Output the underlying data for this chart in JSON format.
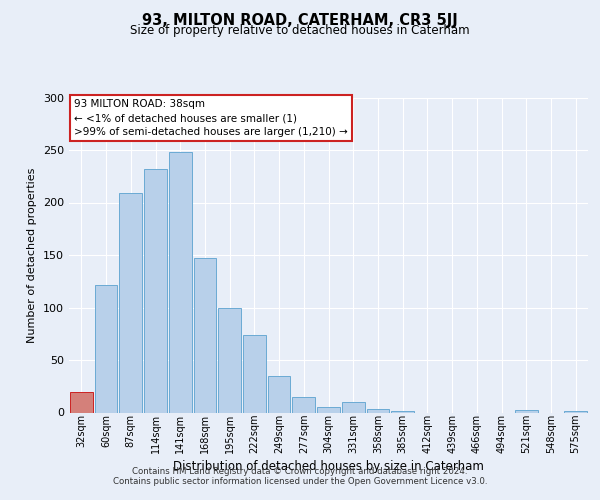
{
  "title": "93, MILTON ROAD, CATERHAM, CR3 5JJ",
  "subtitle": "Size of property relative to detached houses in Caterham",
  "xlabel": "Distribution of detached houses by size in Caterham",
  "ylabel": "Number of detached properties",
  "bar_labels": [
    "32sqm",
    "60sqm",
    "87sqm",
    "114sqm",
    "141sqm",
    "168sqm",
    "195sqm",
    "222sqm",
    "249sqm",
    "277sqm",
    "304sqm",
    "331sqm",
    "358sqm",
    "385sqm",
    "412sqm",
    "439sqm",
    "466sqm",
    "494sqm",
    "521sqm",
    "548sqm",
    "575sqm"
  ],
  "bar_values": [
    20,
    121,
    209,
    232,
    248,
    147,
    100,
    74,
    35,
    15,
    5,
    10,
    3,
    1,
    0,
    0,
    0,
    0,
    2,
    0,
    1
  ],
  "bar_color": "#b8d0ea",
  "bar_edge_color": "#6aaad4",
  "highlight_bar_color": "#d4807a",
  "highlight_bar_edge_color": "#cc2222",
  "box_edge_color": "#cc2222",
  "annotation_line1": "93 MILTON ROAD: 38sqm",
  "annotation_line2": "← <1% of detached houses are smaller (1)",
  "annotation_line3": ">99% of semi-detached houses are larger (1,210) →",
  "ylim": [
    0,
    300
  ],
  "yticks": [
    0,
    50,
    100,
    150,
    200,
    250,
    300
  ],
  "footnote1": "Contains HM Land Registry data © Crown copyright and database right 2024.",
  "footnote2": "Contains public sector information licensed under the Open Government Licence v3.0.",
  "bg_color": "#e8eef8",
  "plot_bg_color": "#e8eef8"
}
